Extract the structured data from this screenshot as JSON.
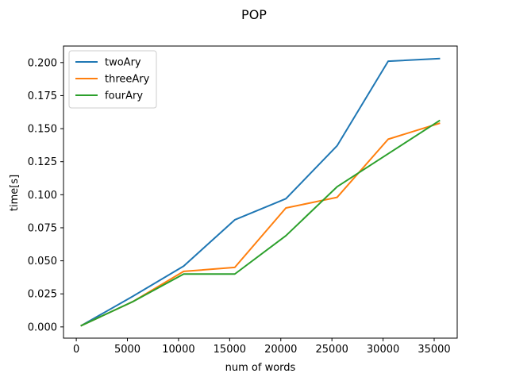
{
  "chart_data": {
    "type": "line",
    "title": "POP",
    "xlabel": "num of words",
    "ylabel": "time[s]",
    "xlim": [
      -1250,
      37250
    ],
    "ylim": [
      -0.0085,
      0.2125
    ],
    "xticks": [
      0,
      5000,
      10000,
      15000,
      20000,
      25000,
      30000,
      35000
    ],
    "xtick_labels": [
      "0",
      "5000",
      "10000",
      "15000",
      "20000",
      "25000",
      "30000",
      "35000"
    ],
    "yticks": [
      0.0,
      0.025,
      0.05,
      0.075,
      0.1,
      0.125,
      0.15,
      0.175,
      0.2
    ],
    "ytick_labels": [
      "0.000",
      "0.025",
      "0.050",
      "0.075",
      "0.100",
      "0.125",
      "0.150",
      "0.175",
      "0.200"
    ],
    "grid": false,
    "legend_position": "top-left",
    "x": [
      500,
      5500,
      10500,
      15500,
      20500,
      25500,
      30500,
      35500
    ],
    "series": [
      {
        "name": "twoAry",
        "color": "#1f77b4",
        "values": [
          0.001,
          0.023,
          0.046,
          0.081,
          0.097,
          0.137,
          0.201,
          0.203
        ]
      },
      {
        "name": "threeAry",
        "color": "#ff7f0e",
        "values": [
          0.001,
          0.019,
          0.042,
          0.045,
          0.09,
          0.098,
          0.142,
          0.154
        ]
      },
      {
        "name": "fourAry",
        "color": "#2ca02c",
        "values": [
          0.001,
          0.019,
          0.04,
          0.04,
          0.069,
          0.106,
          0.131,
          0.156
        ]
      }
    ]
  }
}
